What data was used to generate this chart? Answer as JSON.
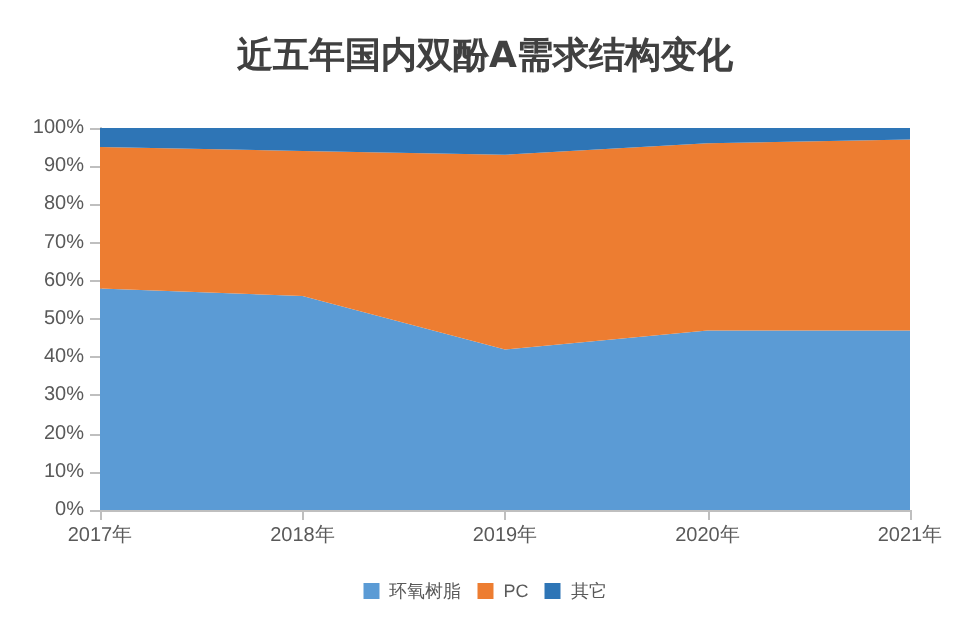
{
  "chart_data": {
    "type": "area",
    "title": "近五年国内双酚A需求结构变化",
    "categories": [
      "2017年",
      "2018年",
      "2019年",
      "2020年",
      "2021年"
    ],
    "stacked": true,
    "series": [
      {
        "name": "环氧树脂",
        "color": "#5b9bd5",
        "values": [
          58,
          56,
          42,
          47,
          47
        ]
      },
      {
        "name": "PC",
        "color": "#ed7d31",
        "values": [
          37,
          38,
          51,
          49,
          50
        ]
      },
      {
        "name": "其它",
        "color": "#2e75b6",
        "values": [
          5,
          6,
          7,
          4,
          3
        ]
      }
    ],
    "ylim": [
      0,
      100
    ],
    "yticks": [
      {
        "value": 0,
        "label": "0%"
      },
      {
        "value": 10,
        "label": "10%"
      },
      {
        "value": 20,
        "label": "20%"
      },
      {
        "value": 30,
        "label": "30%"
      },
      {
        "value": 40,
        "label": "40%"
      },
      {
        "value": 50,
        "label": "50%"
      },
      {
        "value": 60,
        "label": "60%"
      },
      {
        "value": 70,
        "label": "70%"
      },
      {
        "value": 80,
        "label": "80%"
      },
      {
        "value": 90,
        "label": "90%"
      },
      {
        "value": 100,
        "label": "100%"
      }
    ],
    "legend": "bottom"
  }
}
